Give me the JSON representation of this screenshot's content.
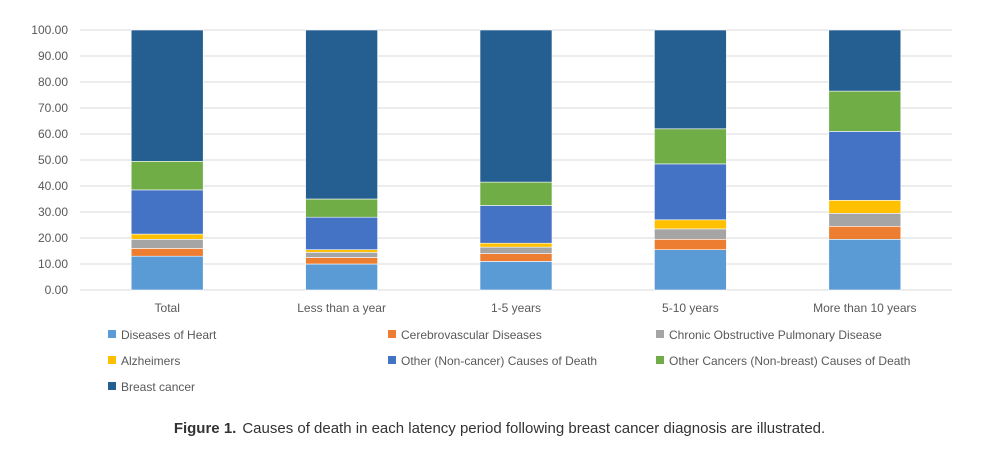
{
  "chart_data": {
    "type": "bar",
    "stacked": true,
    "categories": [
      "Total",
      "Less than a year",
      "1-5 years",
      "5-10 years",
      "More than 10 years"
    ],
    "ylim": [
      0,
      100
    ],
    "yticks": [
      "0.00",
      "10.00",
      "20.00",
      "30.00",
      "40.00",
      "50.00",
      "60.00",
      "70.00",
      "80.00",
      "90.00",
      "100.00"
    ],
    "grid": true,
    "legend_position": "bottom",
    "series": [
      {
        "name": "Diseases of Heart",
        "color": "#5B9BD5",
        "values": [
          13,
          10,
          11,
          15.5,
          19.5
        ]
      },
      {
        "name": "Cerebrovascular Diseases",
        "color": "#ED7D31",
        "values": [
          3,
          2.5,
          3,
          4,
          5
        ]
      },
      {
        "name": "Chronic Obstructive Pulmonary Disease",
        "color": "#A5A5A5",
        "values": [
          3.5,
          2,
          2.5,
          4,
          5
        ]
      },
      {
        "name": "Alzheimers",
        "color": "#FFC000",
        "values": [
          2,
          1,
          1.5,
          3.5,
          5
        ]
      },
      {
        "name": "Other (Non-cancer) Causes of Death",
        "color": "#4472C4",
        "values": [
          17,
          12.5,
          14.5,
          21.5,
          26.5
        ]
      },
      {
        "name": "Other Cancers (Non-breast) Causes of Death",
        "color": "#70AD47",
        "values": [
          11,
          7,
          9,
          13.5,
          15.5
        ]
      },
      {
        "name": "Breast cancer",
        "color": "#255E91",
        "values": [
          50.5,
          65,
          58.5,
          38,
          23.5
        ]
      }
    ]
  },
  "caption": {
    "label": "Figure 1.",
    "text": "Causes of death in each latency period following breast cancer diagnosis are illustrated."
  }
}
